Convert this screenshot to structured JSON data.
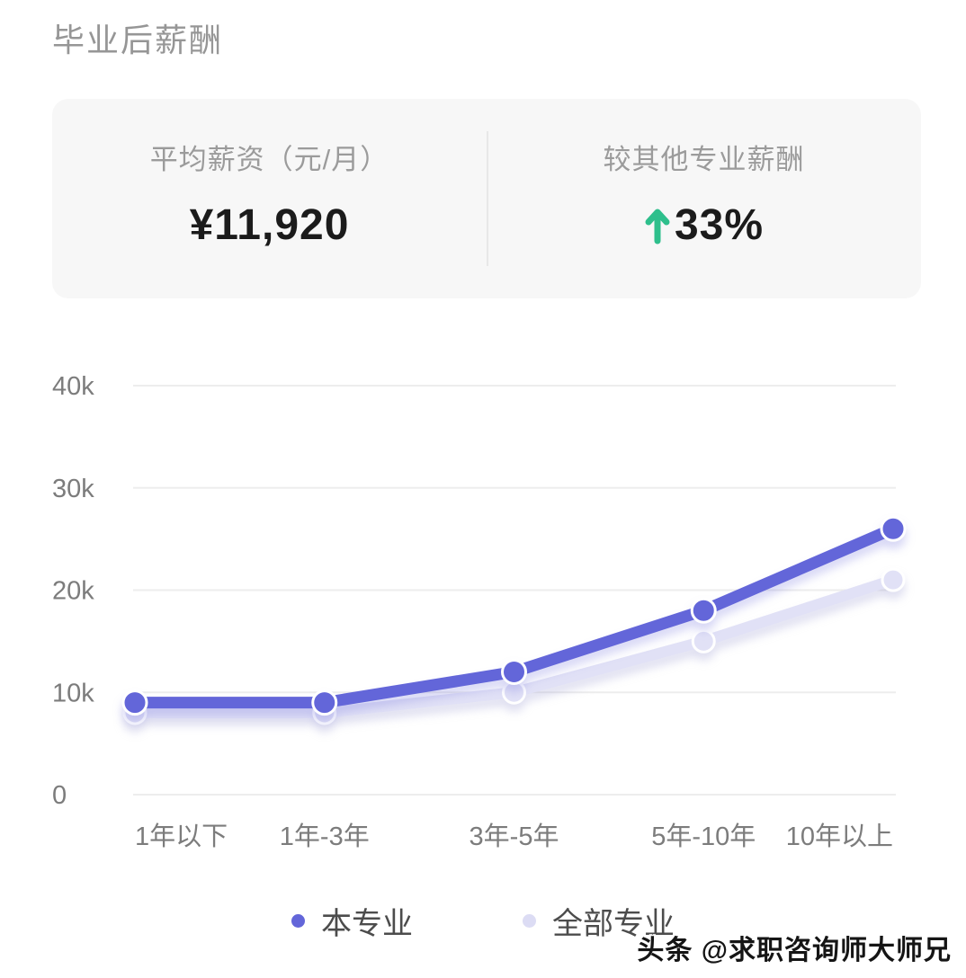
{
  "page": {
    "title": "毕业后薪酬",
    "background": "#ffffff",
    "watermark": "头条 @求职咨询师大师兄"
  },
  "stats_card": {
    "left_label": "平均薪资（元/月）",
    "left_value": "¥11,920",
    "right_label": "较其他专业薪酬",
    "right_value": "33%",
    "right_arrow": "↑",
    "arrow_color": "#2ebf8c"
  },
  "chart_data": {
    "type": "line",
    "title": "毕业后薪酬",
    "categories": [
      "1年以下",
      "1年-3年",
      "3年-5年",
      "5年-10年",
      "10年以上"
    ],
    "series": [
      {
        "name": "本专业",
        "color": "#6366d9",
        "values": [
          9000,
          9000,
          12000,
          18000,
          26000
        ]
      },
      {
        "name": "全部专业",
        "color": "#e1e1f6",
        "values": [
          8000,
          8000,
          10000,
          15000,
          21000
        ]
      }
    ],
    "xlabel": "",
    "ylabel": "",
    "ylim": [
      0,
      40000
    ],
    "yticks": [
      {
        "value": 0,
        "label": "0"
      },
      {
        "value": 10000,
        "label": "10k"
      },
      {
        "value": 20000,
        "label": "20k"
      },
      {
        "value": 30000,
        "label": "30k"
      },
      {
        "value": 40000,
        "label": "40k"
      }
    ],
    "grid": "horizontal-only",
    "gridline_color": "#ededed",
    "axis_label_color": "#7c7c7c",
    "legend_position": "bottom"
  },
  "legend": {
    "items": [
      {
        "label": "本专业",
        "color": "#6366d9"
      },
      {
        "label": "全部专业",
        "color": "#dcdcf4"
      }
    ]
  }
}
